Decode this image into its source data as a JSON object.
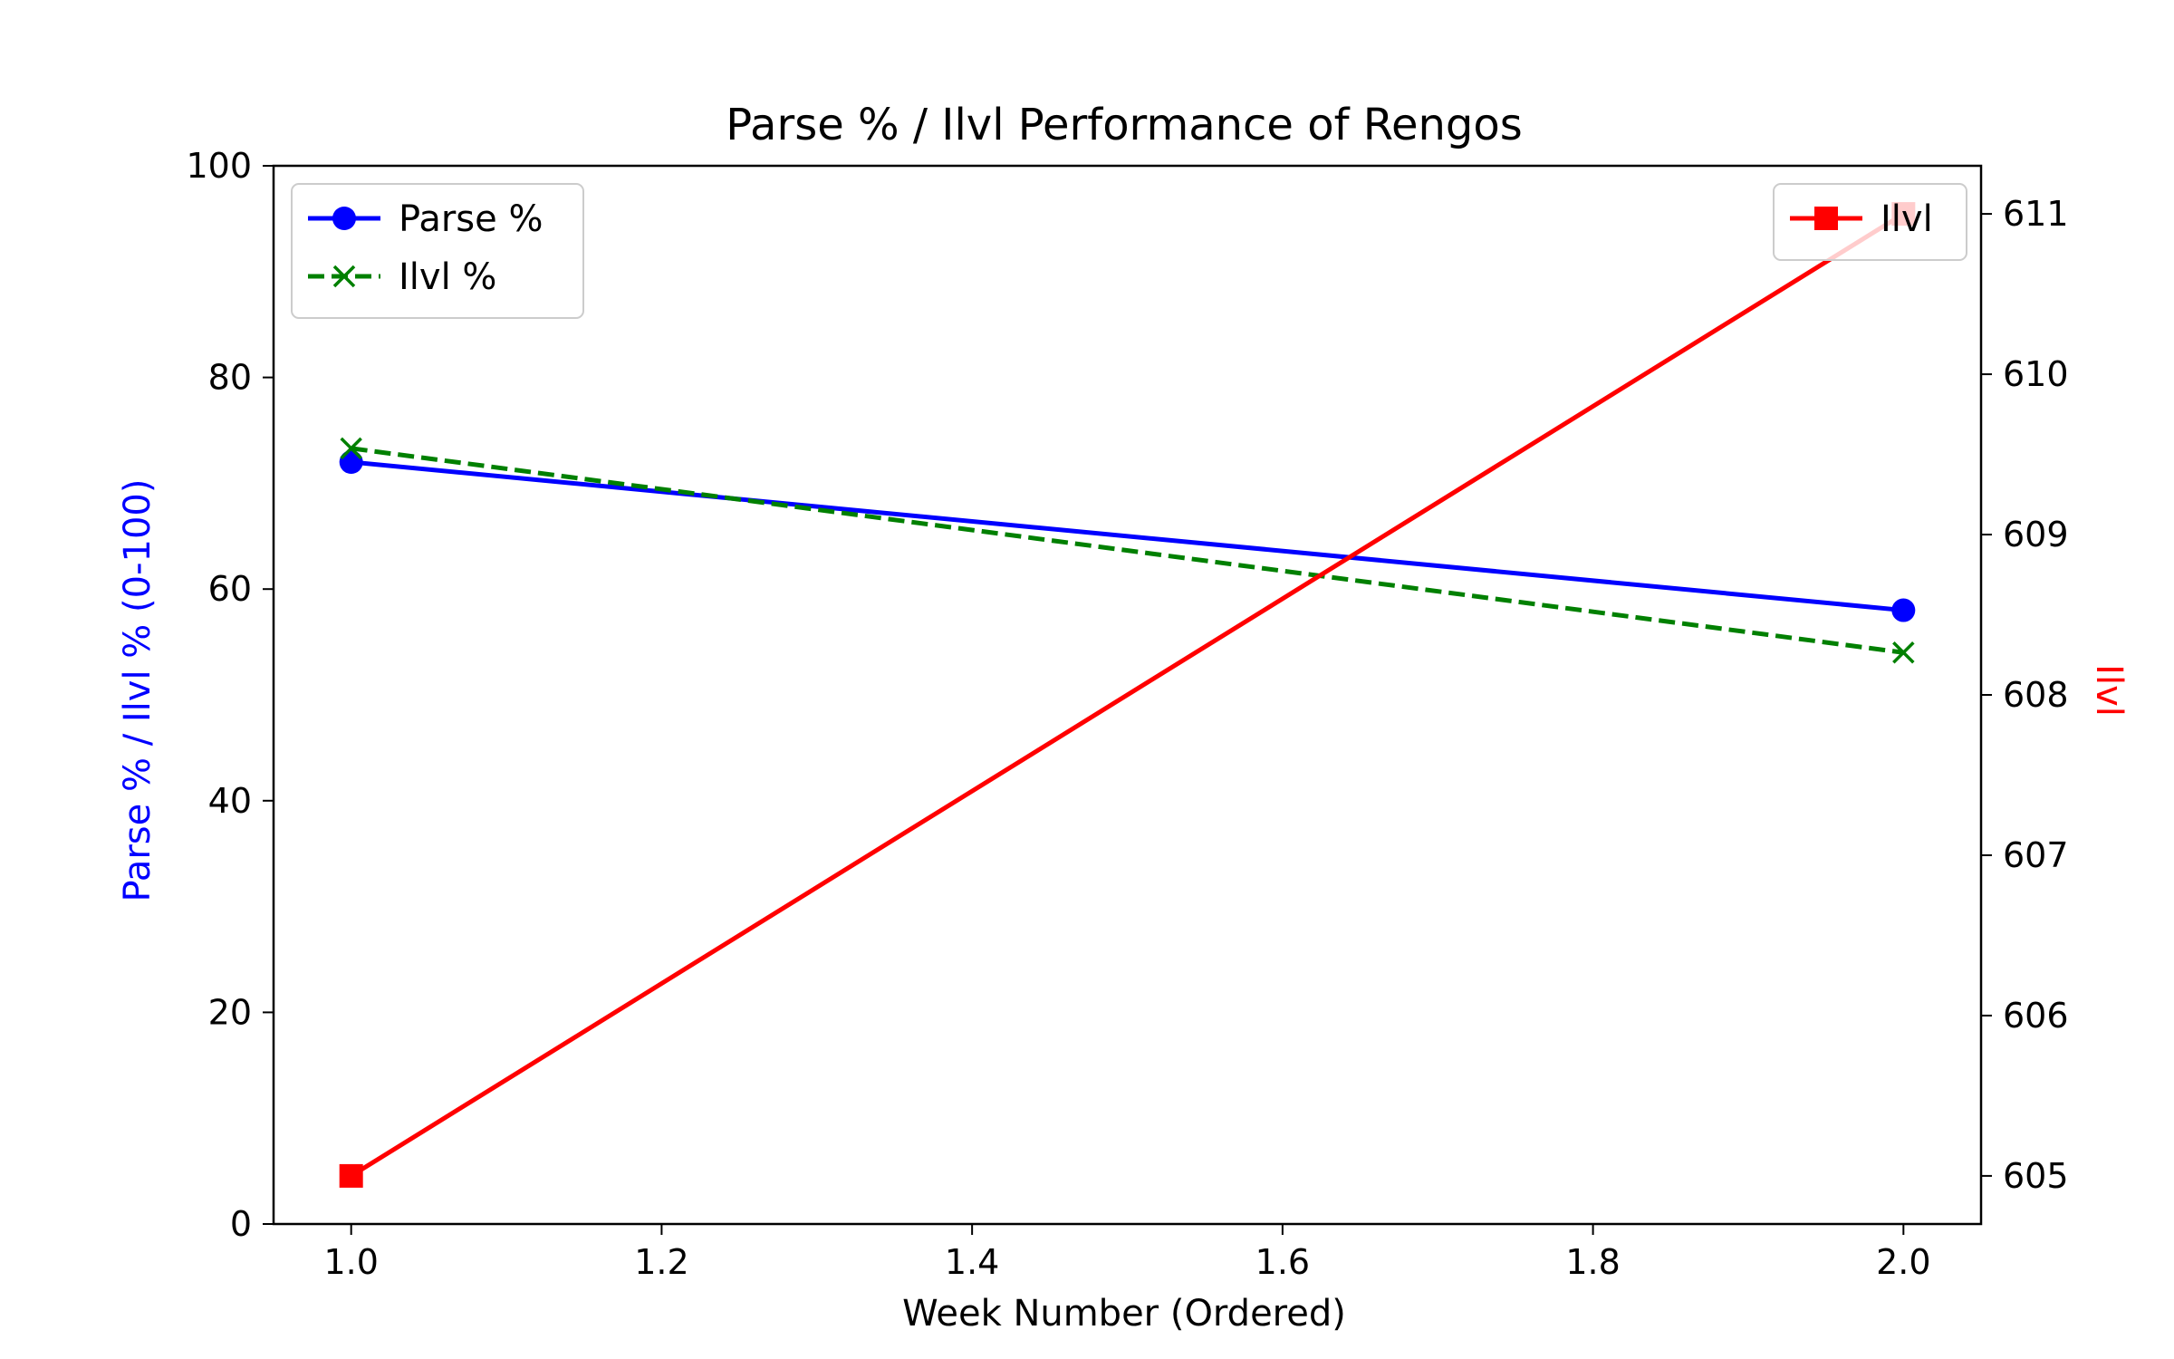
{
  "chart_data": {
    "type": "line",
    "title": "Parse % / Ilvl Performance of Rengos",
    "xlabel": "Week Number (Ordered)",
    "ylabel": "Parse % / Ilvl % (0-100)",
    "y2label": "Ilvl",
    "xlim": [
      0.95,
      2.05
    ],
    "ylim": [
      0,
      100
    ],
    "y2lim": [
      604.7,
      611.3
    ],
    "x_ticks": [
      1.0,
      1.2,
      1.4,
      1.6,
      1.8,
      2.0
    ],
    "x_tick_labels": [
      "1.0",
      "1.2",
      "1.4",
      "1.6",
      "1.8",
      "2.0"
    ],
    "y_ticks": [
      0,
      20,
      40,
      60,
      80,
      100
    ],
    "y_tick_labels": [
      "0",
      "20",
      "40",
      "60",
      "80",
      "100"
    ],
    "y2_ticks": [
      605,
      606,
      607,
      608,
      609,
      610,
      611
    ],
    "y2_tick_labels": [
      "605",
      "606",
      "607",
      "608",
      "609",
      "610",
      "611"
    ],
    "grid": false,
    "legend_left_placement": "top-left",
    "legend_right_placement": "top-right",
    "x": [
      1.0,
      2.0
    ],
    "series": [
      {
        "name": "Parse %",
        "axis": "left",
        "values": [
          72,
          58
        ],
        "color": "#0000ff",
        "marker": "circle",
        "linestyle": "solid"
      },
      {
        "name": "Ilvl %",
        "axis": "left",
        "values": [
          73.3,
          54
        ],
        "color": "#008000",
        "marker": "x",
        "linestyle": "dashed"
      },
      {
        "name": "Ilvl",
        "axis": "right",
        "values": [
          605,
          611
        ],
        "color": "#ff0000",
        "marker": "square",
        "linestyle": "solid"
      }
    ],
    "ylabel_color": "#0000ff",
    "y2label_color": "#ff0000"
  }
}
